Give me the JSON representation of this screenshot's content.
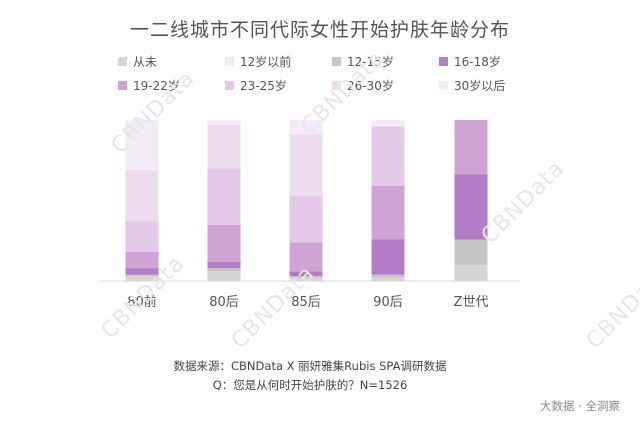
{
  "watermark_text": "CBNData",
  "source_line": "数据来源：CBNData X 丽妍雅集Rubis  SPA调研数据",
  "question_line": "Q：您是从何时开始护肤的？N=1526",
  "brand": "大数据 · 全洞察",
  "chart_data": {
    "type": "bar",
    "stacked": true,
    "percent_stacked": true,
    "title": "一二线城市不同代际女性开始护肤年龄分布",
    "legend_position": "top",
    "grid": false,
    "categories": [
      "80前",
      "80后",
      "85后",
      "90后",
      "Z世代"
    ],
    "series": [
      {
        "name": "从未",
        "color": "#d6d6d6",
        "values": [
          3,
          6,
          2,
          2,
          10
        ]
      },
      {
        "name": "12岁以前",
        "color": "#f3e9f2",
        "values": [
          0,
          0,
          0,
          0,
          0
        ]
      },
      {
        "name": "12-15岁",
        "color": "#c6c6c6",
        "values": [
          1,
          2,
          1,
          2,
          16
        ]
      },
      {
        "name": "16-18岁",
        "color": "#b47bc7",
        "values": [
          4,
          4,
          3,
          22,
          41
        ]
      },
      {
        "name": "19-22岁",
        "color": "#cfa4d4",
        "values": [
          10,
          23,
          18,
          33,
          34
        ]
      },
      {
        "name": "23-25岁",
        "color": "#e3c9e7",
        "values": [
          19,
          35,
          29,
          37,
          0
        ]
      },
      {
        "name": "26-30岁",
        "color": "#ecdced",
        "values": [
          32,
          27,
          38,
          0,
          0
        ]
      },
      {
        "name": "30岁以后",
        "color": "#f3ecf4",
        "values": [
          31,
          3,
          9,
          4,
          0
        ]
      }
    ]
  }
}
